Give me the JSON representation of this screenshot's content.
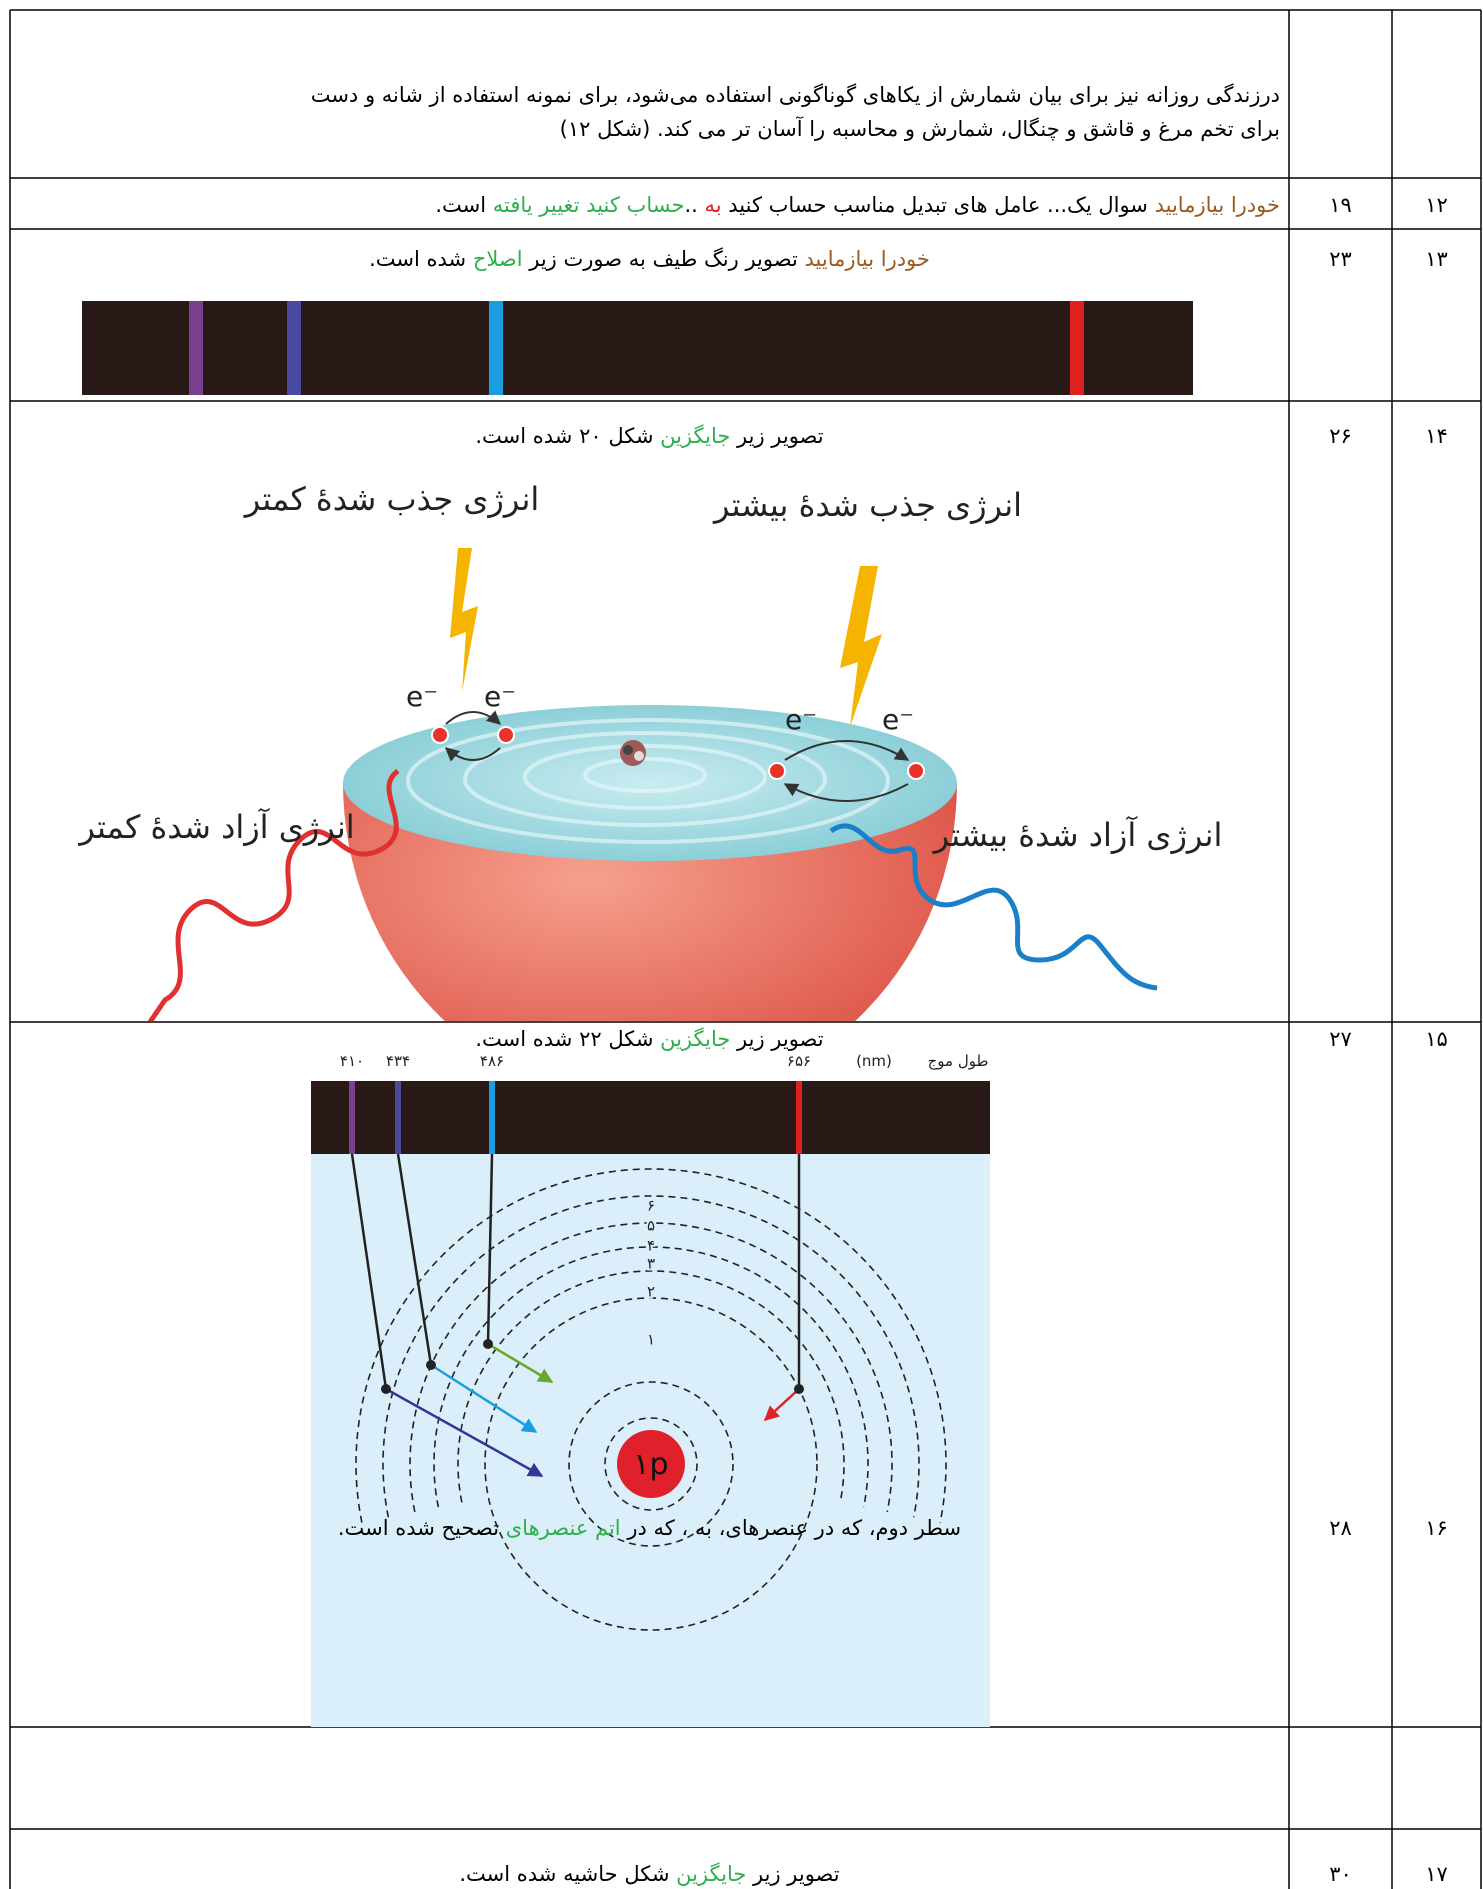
{
  "table": {
    "rows": [
      {
        "text_lines": [
          "درزندگی روزانه نیز برای بیان شمارش از یکاهای گوناگونی استفاده می‌شود، برای نمونه استفاده از شانه و دست",
          "برای تخم مرغ و قاشق و چنگال، شمارش و محاسبه را آسان تر می کند. (شکل ۱۲)"
        ]
      },
      {
        "number": "۱۲",
        "page": "۱۹",
        "text": [
          {
            "text": "خودرا بیازمایید",
            "color": "#9c5a1e"
          },
          {
            "text": " سوال یک... عامل های تبدیل مناسب حساب کنید ",
            "color": "#000000"
          },
          {
            "text": "به",
            "color": "#e0202a"
          },
          {
            "text": " ..",
            "color": "#000000"
          },
          {
            "text": "حساب کنید  تغییر یافته",
            "color": "#2eae4e"
          },
          {
            "text": " است.",
            "color": "#000000"
          }
        ]
      },
      {
        "number": "۱۳",
        "page": "۲۳",
        "text": [
          {
            "text": "خودرا بیازمایید",
            "color": "#9c5a1e"
          },
          {
            "text": " تصویر رنگ طیف به صورت زیر ",
            "color": "#000000"
          },
          {
            "text": "اصلاح",
            "color": "#2eae4e"
          },
          {
            "text": " شده است.",
            "color": "#000000"
          }
        ]
      },
      {
        "number": "۱۴",
        "page": "۲۶",
        "text": [
          {
            "text": "تصویر زیر ",
            "color": "#000000"
          },
          {
            "text": "جایگزین",
            "color": "#2eae4e"
          },
          {
            "text": " شکل ۲۰  شده است.",
            "color": "#000000"
          }
        ],
        "figure": {
          "absorbed_less": "انرژی جذب شدهٔ کمتر",
          "absorbed_more": "انرژی جذب شدهٔ بیشتر",
          "released_less": "انرژی آزاد شدهٔ کمتر",
          "released_more": "انرژی آزاد شدهٔ بیشتر",
          "electron": "e⁻"
        }
      },
      {
        "number": "۱۵",
        "page": "۲۷",
        "text": [
          {
            "text": "تصویر زیر ",
            "color": "#000000"
          },
          {
            "text": "جایگزین",
            "color": "#2eae4e"
          },
          {
            "text": " شکل ۲۲  شده است.",
            "color": "#000000"
          }
        ],
        "figure": {
          "wavelengths": [
            "۴۱۰",
            "۴۳۴",
            "۴۸۶",
            "۶۵۶"
          ],
          "unit": "(nm)",
          "axis_label": "طول موج",
          "levels": [
            "۱",
            "۲",
            "۳",
            "۴",
            "۵",
            "۶"
          ],
          "nucleus": "۱p"
        }
      },
      {
        "number": "۱۶",
        "page": "۲۸",
        "text": [
          {
            "text": "سطر دوم، که در عنصرهای، به ، که در ",
            "color": "#000000"
          },
          {
            "text": "اتم عنصرهای",
            "color": "#2eae4e"
          },
          {
            "text": " تصحیح شده است.",
            "color": "#000000"
          }
        ]
      },
      {
        "number": "۱۷",
        "page": "۳۰",
        "text": [
          {
            "text": "تصویر زیر ",
            "color": "#000000"
          },
          {
            "text": "جایگزین",
            "color": "#2eae4e"
          },
          {
            "text": " شکل حاشیه شده است.",
            "color": "#000000"
          }
        ]
      }
    ]
  }
}
